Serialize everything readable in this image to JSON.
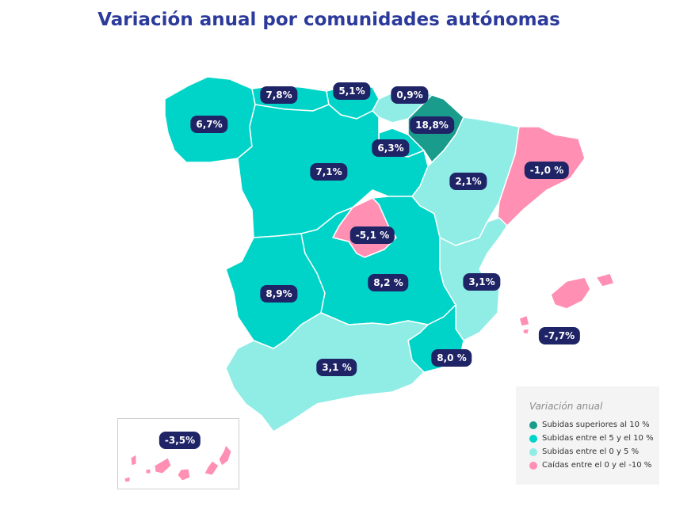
{
  "title": "Variación anual por comunidades autónomas",
  "colors": {
    "above_10": "#1a9c8d",
    "between_5_10": "#00d4c8",
    "between_0_5": "#8fede6",
    "drop_0_10": "#ff8fb3",
    "label_bg": "#1f2466"
  },
  "regions": [
    {
      "id": "galicia",
      "value": "6,7%"
    },
    {
      "id": "asturias",
      "value": "7,8%"
    },
    {
      "id": "cantabria",
      "value": "5,1%"
    },
    {
      "id": "pais-vasco",
      "value": "0,9%"
    },
    {
      "id": "navarra",
      "value": "18,8%"
    },
    {
      "id": "la-rioja",
      "value": "6,3%"
    },
    {
      "id": "castilla-leon",
      "value": "7,1%"
    },
    {
      "id": "aragon",
      "value": "2,1%"
    },
    {
      "id": "cataluna",
      "value": "-1,0 %"
    },
    {
      "id": "madrid",
      "value": "-5,1 %"
    },
    {
      "id": "extremadura",
      "value": "8,9%"
    },
    {
      "id": "castilla-la-mancha",
      "value": "8,2 %"
    },
    {
      "id": "valencia",
      "value": "3,1%"
    },
    {
      "id": "baleares",
      "value": "-7,7%"
    },
    {
      "id": "murcia",
      "value": "8,0 %"
    },
    {
      "id": "andalucia",
      "value": "3,1 %"
    },
    {
      "id": "canarias",
      "value": "-3,5%"
    }
  ],
  "legend": {
    "title": "Variación anual",
    "items": [
      {
        "label": "Subidas superiores al 10 %"
      },
      {
        "label": "Subidas entre el 5 y el 10 %"
      },
      {
        "label": "Subidas entre el 0 y 5 %"
      },
      {
        "label": "Caídas entre el 0 y el -10 %"
      }
    ]
  }
}
